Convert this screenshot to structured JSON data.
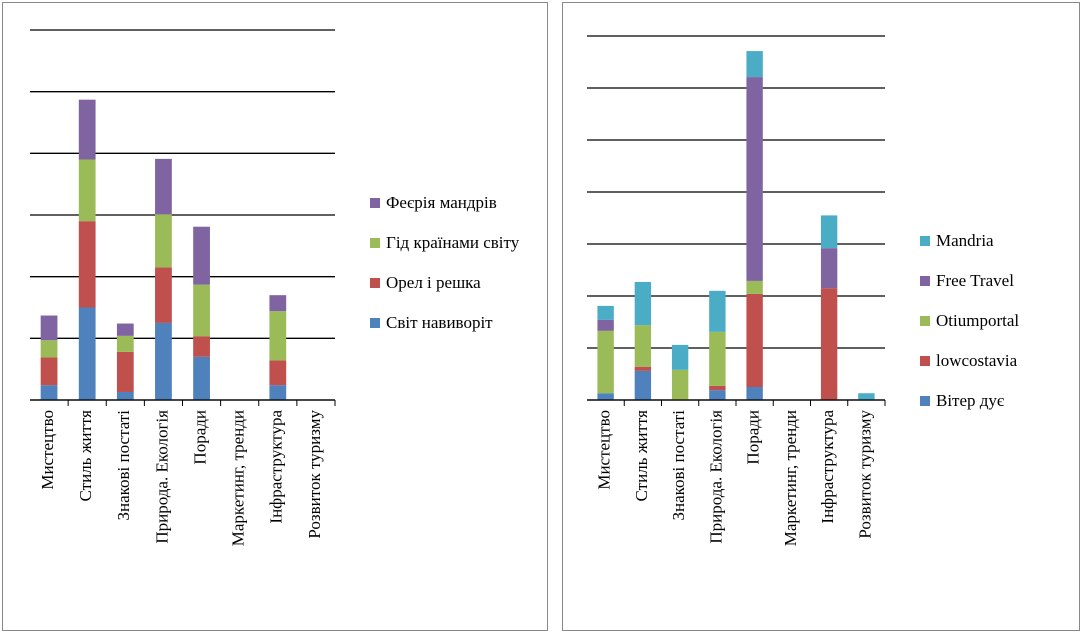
{
  "chart_data": [
    {
      "type": "bar",
      "stacked": true,
      "grid": true,
      "categories": [
        "Мистецтво",
        "Стиль життя",
        "Знакові постаті",
        "Природа. Екологія",
        "Поради",
        "Маркетинг, тренди",
        "Інфраструктура",
        "Розвиток туризму"
      ],
      "ylim": [
        0,
        6
      ],
      "yticks": [
        0,
        1,
        2,
        3,
        4,
        5,
        6
      ],
      "series": [
        {
          "name": "Світ навиворіт",
          "color": "#4f81bd",
          "values": [
            0.24,
            1.5,
            0.13,
            1.25,
            0.7,
            0,
            0.24,
            0
          ]
        },
        {
          "name": "Орел і решка",
          "color": "#c0504d",
          "values": [
            0.45,
            1.4,
            0.65,
            0.9,
            0.33,
            0,
            0.4,
            0
          ]
        },
        {
          "name": "Гід країнами світу",
          "color": "#9bbb59",
          "values": [
            0.28,
            1.0,
            0.26,
            0.86,
            0.84,
            0,
            0.8,
            0
          ]
        },
        {
          "name": "Феєрія мандрів",
          "color": "#8064a2",
          "values": [
            0.4,
            0.97,
            0.2,
            0.9,
            0.94,
            0,
            0.26,
            0
          ]
        }
      ]
    },
    {
      "type": "bar",
      "stacked": true,
      "grid": true,
      "categories": [
        "Мистецтво",
        "Стиль життя",
        "Знакові постаті",
        "Природа. Екологія",
        "Поради",
        "Маркетинг, тренди",
        "Інфраструктура",
        "Розвиток туризму"
      ],
      "ylim": [
        0,
        7
      ],
      "yticks": [
        0,
        1,
        2,
        3,
        4,
        5,
        6,
        7
      ],
      "series": [
        {
          "name": "Вітер дує",
          "color": "#4f81bd",
          "values": [
            0.13,
            0.56,
            0,
            0.19,
            0.25,
            0,
            0,
            0
          ]
        },
        {
          "name": "lowcostavia",
          "color": "#c0504d",
          "values": [
            0,
            0.08,
            0,
            0.08,
            1.79,
            0,
            2.15,
            0
          ]
        },
        {
          "name": "Otiumportal",
          "color": "#9bbb59",
          "values": [
            1.2,
            0.8,
            0.58,
            1.04,
            0.25,
            0,
            0,
            0
          ]
        },
        {
          "name": "Free Travel",
          "color": "#8064a2",
          "values": [
            0.21,
            0,
            0,
            0,
            3.92,
            0,
            0.77,
            0
          ]
        },
        {
          "name": "Mandria",
          "color": "#4bacc6",
          "values": [
            0.27,
            0.83,
            0.48,
            0.79,
            0.5,
            0,
            0.63,
            0.13
          ]
        }
      ]
    }
  ]
}
